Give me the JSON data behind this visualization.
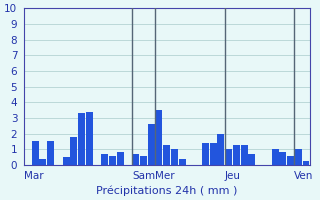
{
  "xlabel": "Précipitations 24h ( mm )",
  "background_color": "#e8f8f8",
  "plot_bg_color": "#e8f8f8",
  "bar_color": "#2255dd",
  "ylim": [
    0,
    10
  ],
  "yticks": [
    0,
    1,
    2,
    3,
    4,
    5,
    6,
    7,
    8,
    9,
    10
  ],
  "day_labels": [
    "Mar",
    "Sam",
    "Mer",
    "Jeu",
    "Ven"
  ],
  "day_label_bar_indices": [
    0,
    14,
    17,
    26,
    35
  ],
  "vline_bar_indices": [
    14,
    17,
    26,
    35
  ],
  "values": [
    0.0,
    1.5,
    0.4,
    1.5,
    0.0,
    0.5,
    1.75,
    3.3,
    3.35,
    0.0,
    0.7,
    0.6,
    0.8,
    0.0,
    0.7,
    0.6,
    2.6,
    3.5,
    1.25,
    1.0,
    0.4,
    0.0,
    0.0,
    1.4,
    1.4,
    2.0,
    1.0,
    1.25,
    1.25,
    0.7,
    0.0,
    0.0,
    1.0,
    0.85,
    0.6,
    1.0,
    0.25
  ],
  "grid_color": "#aacccc",
  "vline_color": "#556677",
  "axis_color": "#4444aa",
  "tick_color": "#2233aa",
  "label_fontsize": 8,
  "tick_fontsize": 7.5
}
